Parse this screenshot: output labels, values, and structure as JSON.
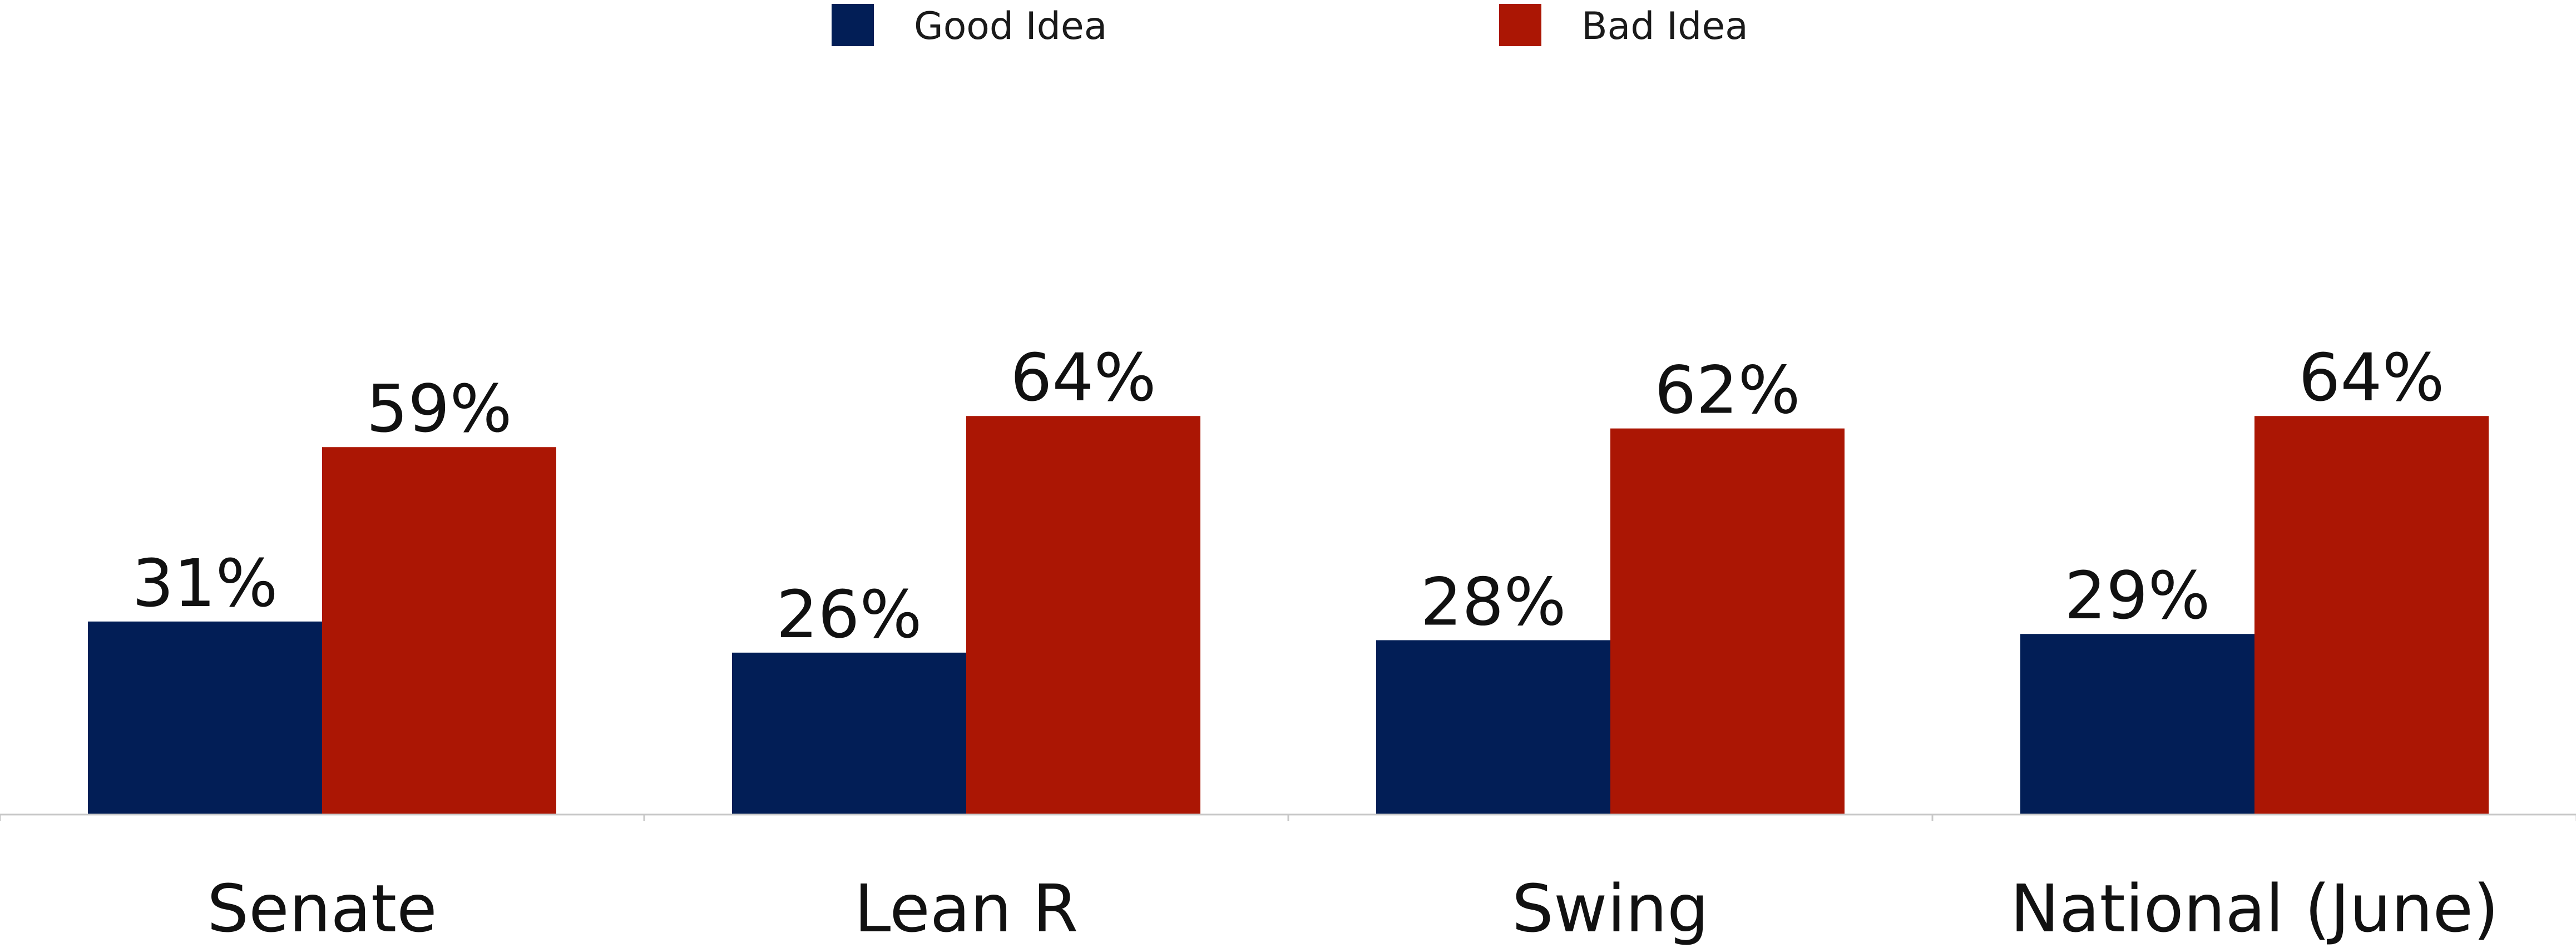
{
  "chart_data": {
    "type": "bar",
    "categories": [
      "Senate",
      "Lean R",
      "Swing",
      "National (June)"
    ],
    "series": [
      {
        "name": "Good Idea",
        "values": [
          31,
          26,
          28,
          29
        ],
        "color": "#021e56"
      },
      {
        "name": "Bad Idea",
        "values": [
          59,
          64,
          62,
          64
        ],
        "color": "#ab1604"
      }
    ],
    "value_suffix": "%",
    "title": "",
    "xlabel": "",
    "ylabel": "",
    "ylim": [
      0,
      100
    ],
    "grid": false,
    "legend_position": "top-center",
    "axis_color": "#c8c8c8"
  }
}
